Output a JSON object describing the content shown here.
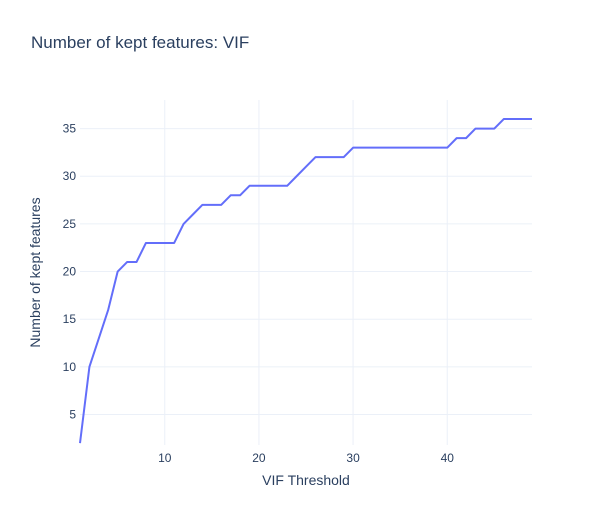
{
  "chart_data": {
    "type": "line",
    "title": "Number of kept features: VIF",
    "xlabel": "VIF Threshold",
    "ylabel": "Number of kept features",
    "xlim": [
      1,
      49
    ],
    "ylim": [
      1.8,
      38
    ],
    "xticks": [
      10,
      20,
      30,
      40
    ],
    "yticks": [
      5,
      10,
      15,
      20,
      25,
      30,
      35
    ],
    "grid": true,
    "line_color": "#636efa",
    "series": [
      {
        "x": [
          1,
          2,
          3,
          4,
          5,
          6,
          7,
          8,
          9,
          10,
          11,
          12,
          13,
          14,
          15,
          16,
          17,
          18,
          19,
          20,
          21,
          22,
          23,
          24,
          25,
          26,
          27,
          28,
          29,
          30,
          31,
          32,
          33,
          34,
          35,
          36,
          37,
          38,
          39,
          40,
          41,
          42,
          43,
          44,
          45,
          46,
          47,
          48,
          49
        ],
        "values": [
          2,
          10,
          13,
          16,
          20,
          21,
          21,
          23,
          23,
          23,
          23,
          25,
          26,
          27,
          27,
          27,
          28,
          28,
          29,
          29,
          29,
          29,
          29,
          30,
          31,
          32,
          32,
          32,
          32,
          33,
          33,
          33,
          33,
          33,
          33,
          33,
          33,
          33,
          33,
          33,
          34,
          34,
          35,
          35,
          35,
          36,
          36,
          36,
          36
        ]
      }
    ]
  }
}
